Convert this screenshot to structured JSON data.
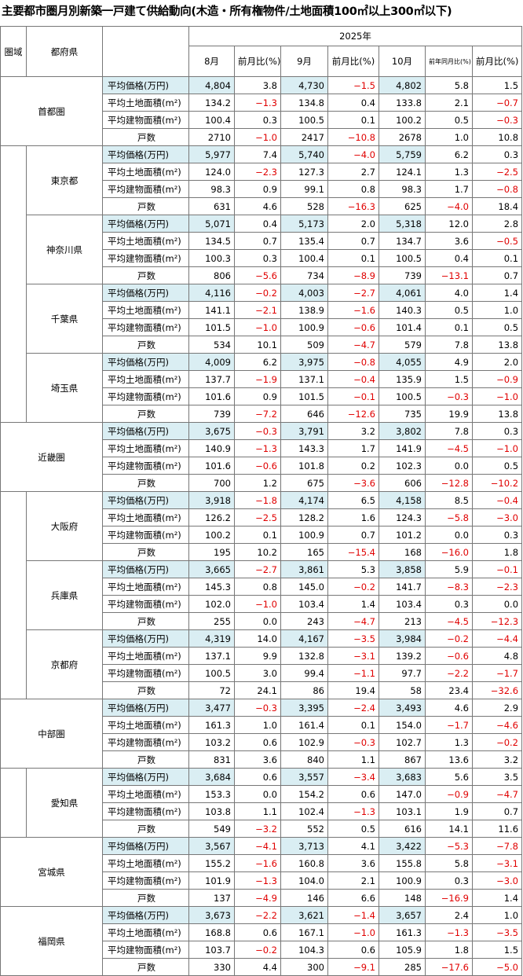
{
  "title": "主要都市圏月別新築一戸建て供給動向(木造・所有権物件/土地面積100㎡以上300㎡以下)",
  "header": {
    "region": "圏域",
    "prefecture": "都府県",
    "year": "2025年",
    "columns": [
      "8月",
      "前月比(%)",
      "9月",
      "前月比(%)",
      "10月",
      "前年同月比(%)",
      "前月比(%)"
    ]
  },
  "table": {
    "groups": [
      {
        "blocks": [
          {
            "name": "首都圏",
            "rows": [
              [
                "平均価格(万円)",
                "4,804",
                "3.8",
                "4,730",
                "−1.5",
                "4,802",
                "5.8",
                "1.5"
              ],
              [
                "平均土地面積(m²)",
                "134.2",
                "−1.3",
                "134.8",
                "0.4",
                "133.8",
                "2.1",
                "−0.7"
              ],
              [
                "平均建物面積(m²)",
                "100.4",
                "0.3",
                "100.5",
                "0.1",
                "100.2",
                "0.5",
                "−0.3"
              ],
              [
                "戸数",
                "2710",
                "−1.0",
                "2417",
                "−10.8",
                "2678",
                "1.0",
                "10.8"
              ]
            ]
          },
          {
            "name": "東京都",
            "rows": [
              [
                "平均価格(万円)",
                "5,977",
                "7.4",
                "5,740",
                "−4.0",
                "5,759",
                "6.2",
                "0.3"
              ],
              [
                "平均土地面積(m²)",
                "124.0",
                "−2.3",
                "127.3",
                "2.7",
                "124.1",
                "1.3",
                "−2.5"
              ],
              [
                "平均建物面積(m²)",
                "98.3",
                "0.9",
                "99.1",
                "0.8",
                "98.3",
                "1.7",
                "−0.8"
              ],
              [
                "戸数",
                "631",
                "4.6",
                "528",
                "−16.3",
                "625",
                "−4.0",
                "18.4"
              ]
            ]
          },
          {
            "name": "神奈川県",
            "rows": [
              [
                "平均価格(万円)",
                "5,071",
                "0.4",
                "5,173",
                "2.0",
                "5,318",
                "12.0",
                "2.8"
              ],
              [
                "平均土地面積(m²)",
                "134.5",
                "0.7",
                "135.4",
                "0.7",
                "134.7",
                "3.6",
                "−0.5"
              ],
              [
                "平均建物面積(m²)",
                "100.3",
                "0.3",
                "100.4",
                "0.1",
                "100.5",
                "0.4",
                "0.1"
              ],
              [
                "戸数",
                "806",
                "−5.6",
                "734",
                "−8.9",
                "739",
                "−13.1",
                "0.7"
              ]
            ]
          },
          {
            "name": "千葉県",
            "rows": [
              [
                "平均価格(万円)",
                "4,116",
                "−0.2",
                "4,003",
                "−2.7",
                "4,061",
                "4.0",
                "1.4"
              ],
              [
                "平均土地面積(m²)",
                "141.1",
                "−2.1",
                "138.9",
                "−1.6",
                "140.3",
                "0.5",
                "1.0"
              ],
              [
                "平均建物面積(m²)",
                "101.5",
                "−1.0",
                "100.9",
                "−0.6",
                "101.4",
                "0.1",
                "0.5"
              ],
              [
                "戸数",
                "534",
                "10.1",
                "509",
                "−4.7",
                "579",
                "7.8",
                "13.8"
              ]
            ]
          },
          {
            "name": "埼玉県",
            "rows": [
              [
                "平均価格(万円)",
                "4,009",
                "6.2",
                "3,975",
                "−0.8",
                "4,055",
                "4.9",
                "2.0"
              ],
              [
                "平均土地面積(m²)",
                "137.7",
                "−1.9",
                "137.1",
                "−0.4",
                "135.9",
                "1.5",
                "−0.9"
              ],
              [
                "平均建物面積(m²)",
                "101.6",
                "0.9",
                "101.5",
                "−0.1",
                "100.5",
                "−0.3",
                "−1.0"
              ],
              [
                "戸数",
                "739",
                "−7.2",
                "646",
                "−12.6",
                "735",
                "19.9",
                "13.8"
              ]
            ]
          }
        ]
      },
      {
        "blocks": [
          {
            "name": "近畿圏",
            "rows": [
              [
                "平均価格(万円)",
                "3,675",
                "−0.3",
                "3,791",
                "3.2",
                "3,802",
                "7.8",
                "0.3"
              ],
              [
                "平均土地面積(m²)",
                "140.9",
                "−1.3",
                "143.3",
                "1.7",
                "141.9",
                "−4.5",
                "−1.0"
              ],
              [
                "平均建物面積(m²)",
                "101.6",
                "−0.6",
                "101.8",
                "0.2",
                "102.3",
                "0.0",
                "0.5"
              ],
              [
                "戸数",
                "700",
                "1.2",
                "675",
                "−3.6",
                "606",
                "−12.8",
                "−10.2"
              ]
            ]
          },
          {
            "name": "大阪府",
            "rows": [
              [
                "平均価格(万円)",
                "3,918",
                "−1.8",
                "4,174",
                "6.5",
                "4,158",
                "8.5",
                "−0.4"
              ],
              [
                "平均土地面積(m²)",
                "126.2",
                "−2.5",
                "128.2",
                "1.6",
                "124.3",
                "−5.8",
                "−3.0"
              ],
              [
                "平均建物面積(m²)",
                "100.2",
                "0.1",
                "100.9",
                "0.7",
                "101.2",
                "0.0",
                "0.3"
              ],
              [
                "戸数",
                "195",
                "10.2",
                "165",
                "−15.4",
                "168",
                "−16.0",
                "1.8"
              ]
            ]
          },
          {
            "name": "兵庫県",
            "rows": [
              [
                "平均価格(万円)",
                "3,665",
                "−2.7",
                "3,861",
                "5.3",
                "3,858",
                "5.9",
                "−0.1"
              ],
              [
                "平均土地面積(m²)",
                "145.3",
                "0.8",
                "145.0",
                "−0.2",
                "141.7",
                "−8.3",
                "−2.3"
              ],
              [
                "平均建物面積(m²)",
                "102.0",
                "−1.0",
                "103.4",
                "1.4",
                "103.4",
                "0.3",
                "0.0"
              ],
              [
                "戸数",
                "255",
                "0.0",
                "243",
                "−4.7",
                "213",
                "−4.5",
                "−12.3"
              ]
            ]
          },
          {
            "name": "京都府",
            "rows": [
              [
                "平均価格(万円)",
                "4,319",
                "14.0",
                "4,167",
                "−3.5",
                "3,984",
                "−0.2",
                "−4.4"
              ],
              [
                "平均土地面積(m²)",
                "137.1",
                "9.9",
                "132.8",
                "−3.1",
                "139.2",
                "−0.6",
                "4.8"
              ],
              [
                "平均建物面積(m²)",
                "100.5",
                "3.0",
                "99.4",
                "−1.1",
                "97.7",
                "−2.2",
                "−1.7"
              ],
              [
                "戸数",
                "72",
                "24.1",
                "86",
                "19.4",
                "58",
                "23.4",
                "−32.6"
              ]
            ]
          }
        ]
      },
      {
        "blocks": [
          {
            "name": "中部圏",
            "rows": [
              [
                "平均価格(万円)",
                "3,477",
                "−0.3",
                "3,395",
                "−2.4",
                "3,493",
                "4.6",
                "2.9"
              ],
              [
                "平均土地面積(m²)",
                "161.3",
                "1.0",
                "161.4",
                "0.1",
                "154.0",
                "−1.7",
                "−4.6"
              ],
              [
                "平均建物面積(m²)",
                "103.2",
                "0.6",
                "102.9",
                "−0.3",
                "102.7",
                "1.3",
                "−0.2"
              ],
              [
                "戸数",
                "831",
                "3.6",
                "840",
                "1.1",
                "867",
                "13.6",
                "3.2"
              ]
            ]
          },
          {
            "name": "愛知県",
            "rows": [
              [
                "平均価格(万円)",
                "3,684",
                "0.6",
                "3,557",
                "−3.4",
                "3,683",
                "5.6",
                "3.5"
              ],
              [
                "平均土地面積(m²)",
                "153.3",
                "0.0",
                "154.2",
                "0.6",
                "147.0",
                "−0.9",
                "−4.7"
              ],
              [
                "平均建物面積(m²)",
                "103.8",
                "1.1",
                "102.4",
                "−1.3",
                "103.1",
                "1.9",
                "0.7"
              ],
              [
                "戸数",
                "549",
                "−3.2",
                "552",
                "0.5",
                "616",
                "14.1",
                "11.6"
              ]
            ]
          }
        ]
      },
      {
        "blocks": [
          {
            "name": "宮城県",
            "rows": [
              [
                "平均価格(万円)",
                "3,567",
                "−4.1",
                "3,713",
                "4.1",
                "3,422",
                "−5.3",
                "−7.8"
              ],
              [
                "平均土地面積(m²)",
                "155.2",
                "−1.6",
                "160.8",
                "3.6",
                "155.8",
                "5.8",
                "−3.1"
              ],
              [
                "平均建物面積(m²)",
                "101.9",
                "−1.3",
                "104.0",
                "2.1",
                "100.9",
                "0.3",
                "−3.0"
              ],
              [
                "戸数",
                "137",
                "−4.9",
                "146",
                "6.6",
                "148",
                "−16.9",
                "1.4"
              ]
            ]
          }
        ]
      },
      {
        "blocks": [
          {
            "name": "福岡県",
            "rows": [
              [
                "平均価格(万円)",
                "3,673",
                "−2.2",
                "3,621",
                "−1.4",
                "3,657",
                "2.4",
                "1.0"
              ],
              [
                "平均土地面積(m²)",
                "168.8",
                "0.6",
                "167.1",
                "−1.0",
                "161.3",
                "−1.3",
                "−3.5"
              ],
              [
                "平均建物面積(m²)",
                "103.7",
                "−0.2",
                "104.3",
                "0.6",
                "105.9",
                "1.8",
                "1.5"
              ],
              [
                "戸数",
                "330",
                "4.4",
                "300",
                "−9.1",
                "285",
                "−17.6",
                "−5.0"
              ]
            ]
          }
        ]
      }
    ]
  }
}
